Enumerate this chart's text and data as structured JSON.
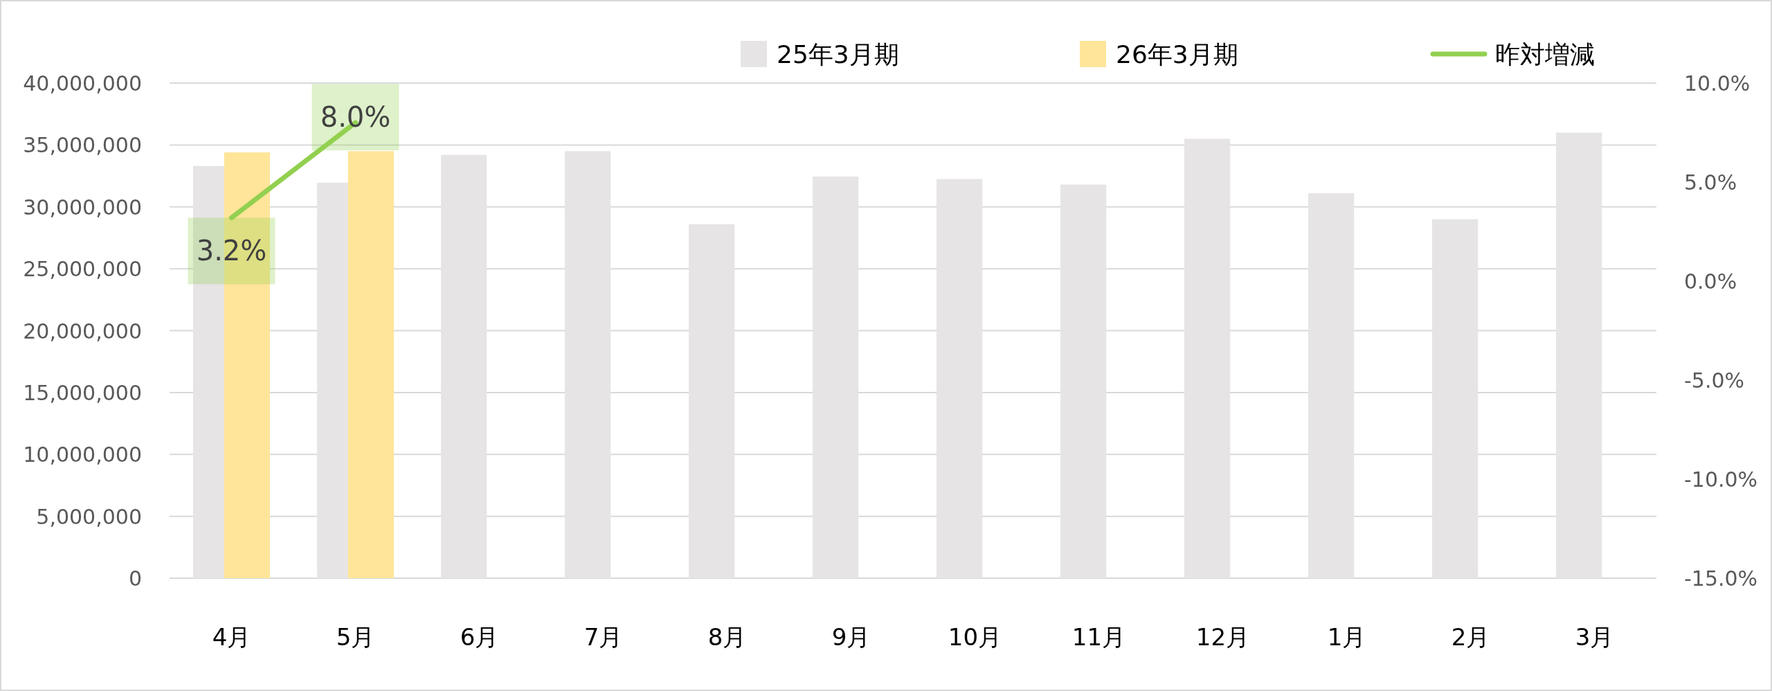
{
  "chart_data": {
    "type": "bar",
    "categories": [
      "4月",
      "5月",
      "6月",
      "7月",
      "8月",
      "9月",
      "10月",
      "11月",
      "12月",
      "1月",
      "2月",
      "3月"
    ],
    "series": [
      {
        "name": "25年3月期",
        "color": "#e6e4e5",
        "values": [
          33300000,
          31950000,
          34200000,
          34500000,
          28600000,
          32450000,
          32250000,
          31800000,
          35500000,
          31100000,
          29000000,
          36000000
        ]
      },
      {
        "name": "26年3月期",
        "color": "#fee599",
        "values": [
          34400000,
          34500000,
          null,
          null,
          null,
          null,
          null,
          null,
          null,
          null,
          null,
          null
        ]
      },
      {
        "name": "昨対増減",
        "type": "line",
        "axis": "y2",
        "color": "#92d050",
        "values": [
          3.2,
          8.0,
          null,
          null,
          null,
          null,
          null,
          null,
          null,
          null,
          null,
          null
        ],
        "value_labels": [
          "3.2%",
          "8.0%",
          null,
          null,
          null,
          null,
          null,
          null,
          null,
          null,
          null,
          null
        ]
      }
    ],
    "ylim": [
      0,
      40000000
    ],
    "yticks": [
      {
        "value": 0,
        "label": "0"
      },
      {
        "value": 5000000,
        "label": "5,000,000"
      },
      {
        "value": 10000000,
        "label": "10,000,000"
      },
      {
        "value": 15000000,
        "label": "15,000,000"
      },
      {
        "value": 20000000,
        "label": "20,000,000"
      },
      {
        "value": 25000000,
        "label": "25,000,000"
      },
      {
        "value": 30000000,
        "label": "30,000,000"
      },
      {
        "value": 35000000,
        "label": "35,000,000"
      },
      {
        "value": 40000000,
        "label": "40,000,000"
      }
    ],
    "y2lim": [
      -15,
      10
    ],
    "y2ticks": [
      {
        "value": -15,
        "label": "-15.0%"
      },
      {
        "value": -10,
        "label": "-10.0%"
      },
      {
        "value": -5,
        "label": "-5.0%"
      },
      {
        "value": 0,
        "label": "0.0%"
      },
      {
        "value": 5,
        "label": "5.0%"
      },
      {
        "value": 10,
        "label": "10.0%"
      }
    ],
    "grid": "y",
    "legend": "top"
  }
}
